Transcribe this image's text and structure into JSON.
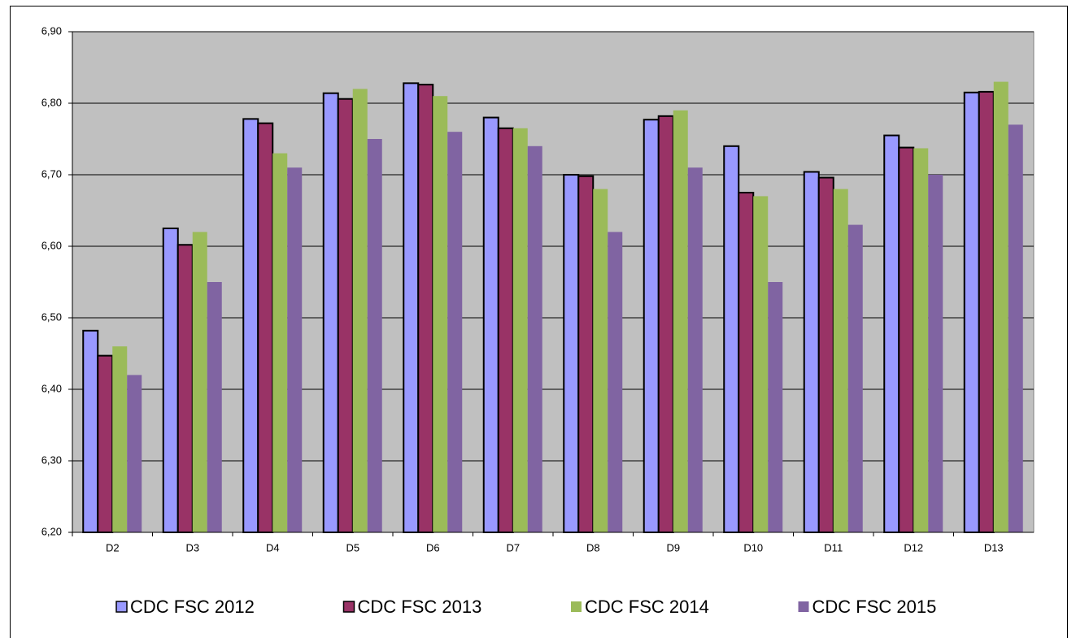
{
  "chart_data": {
    "type": "bar",
    "categories": [
      "D2",
      "D3",
      "D4",
      "D5",
      "D6",
      "D7",
      "D8",
      "D9",
      "D10",
      "D11",
      "D12",
      "D13"
    ],
    "series": [
      {
        "name": "CDC FSC 2012",
        "color": "#9999ff",
        "border": "#000000",
        "values": [
          6.482,
          6.625,
          6.778,
          6.814,
          6.828,
          6.78,
          6.7,
          6.777,
          6.74,
          6.704,
          6.755,
          6.815
        ]
      },
      {
        "name": "CDC FSC 2013",
        "color": "#993366",
        "border": "#000000",
        "values": [
          6.447,
          6.602,
          6.772,
          6.806,
          6.826,
          6.765,
          6.698,
          6.782,
          6.675,
          6.696,
          6.738,
          6.816
        ]
      },
      {
        "name": "CDC FSC 2014",
        "color": "#9bbb59",
        "values": [
          6.46,
          6.62,
          6.73,
          6.82,
          6.81,
          6.765,
          6.68,
          6.79,
          6.67,
          6.68,
          6.737,
          6.83
        ]
      },
      {
        "name": "CDC FSC 2015",
        "color": "#8064a2",
        "values": [
          6.42,
          6.55,
          6.71,
          6.75,
          6.76,
          6.74,
          6.62,
          6.71,
          6.55,
          6.63,
          6.7,
          6.77
        ]
      }
    ],
    "ylim": [
      6.2,
      6.9
    ],
    "yticks": [
      {
        "value": 6.2,
        "label": "6,20"
      },
      {
        "value": 6.3,
        "label": "6,30"
      },
      {
        "value": 6.4,
        "label": "6,40"
      },
      {
        "value": 6.5,
        "label": "6,50"
      },
      {
        "value": 6.6,
        "label": "6,60"
      },
      {
        "value": 6.7,
        "label": "6,70"
      },
      {
        "value": 6.8,
        "label": "6,80"
      },
      {
        "value": 6.9,
        "label": "6,90"
      }
    ],
    "grid": true,
    "plot_background": "#c0c0c0",
    "legend": "bottom"
  }
}
